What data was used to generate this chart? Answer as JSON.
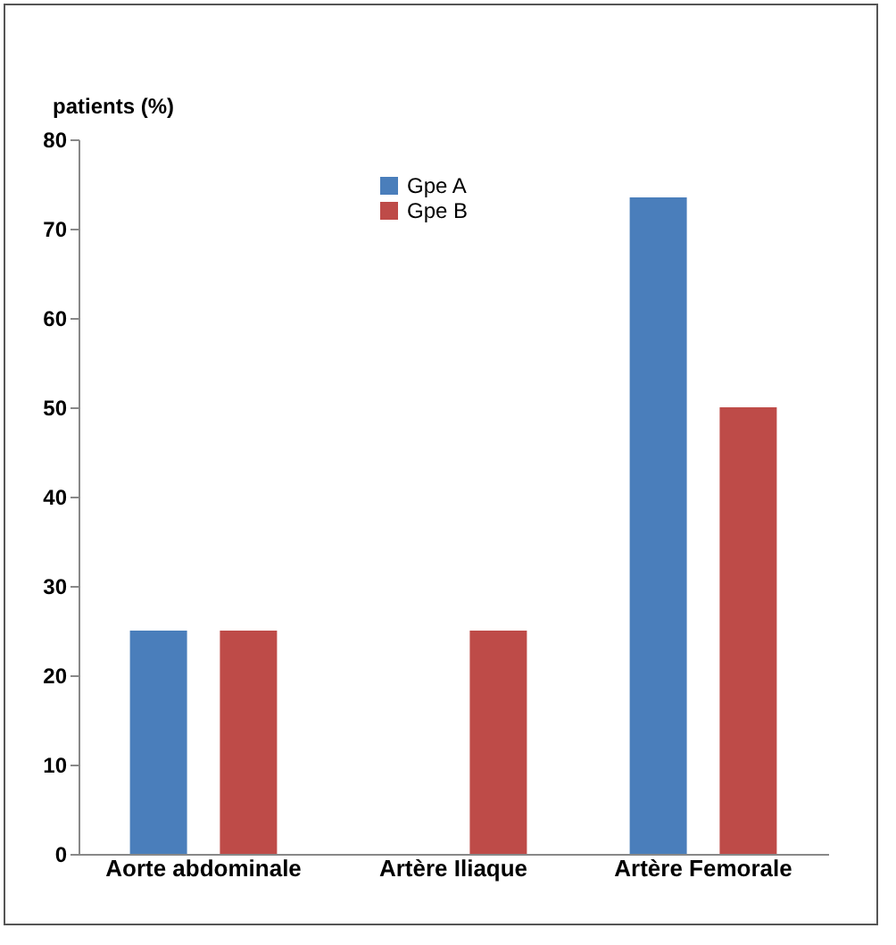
{
  "chart_data": {
    "type": "bar",
    "ylabel": "patients (%)",
    "categories": [
      "Aorte abdominale",
      "Artère Iliaque",
      "Artère Femorale"
    ],
    "series": [
      {
        "name": "Gpe A",
        "color": "#4a7ebb",
        "values": [
          25,
          0,
          73.5
        ]
      },
      {
        "name": "Gpe B",
        "color": "#be4b48",
        "values": [
          25,
          25,
          50
        ]
      }
    ],
    "ylim": [
      0,
      80
    ],
    "yticks": [
      0,
      10,
      20,
      30,
      40,
      50,
      60,
      70,
      80
    ],
    "grid": false,
    "legend": "top"
  }
}
